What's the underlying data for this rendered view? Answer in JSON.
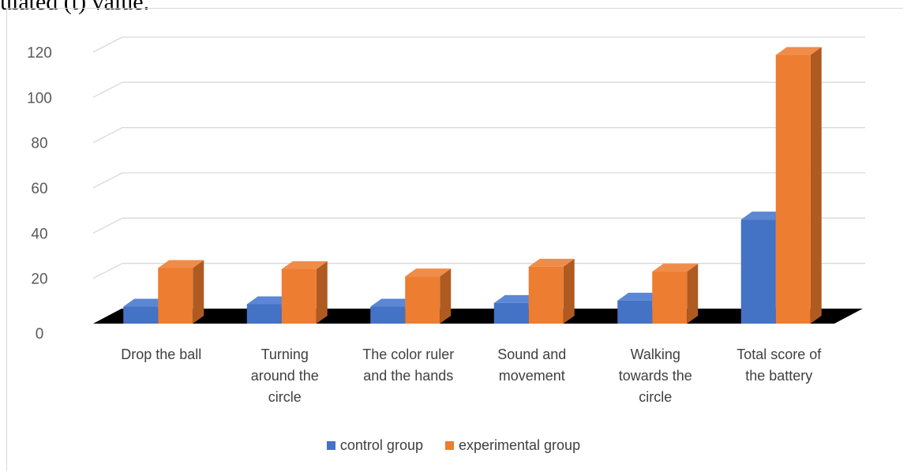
{
  "page": {
    "top_text": "ulated (t) value."
  },
  "chart_data": {
    "type": "bar",
    "title": "",
    "xlabel": "",
    "ylabel": "",
    "ylim": [
      0,
      120
    ],
    "yticks": [
      0,
      20,
      40,
      60,
      80,
      100,
      120
    ],
    "grid": true,
    "legend_position": "bottom",
    "categories": [
      [
        "Drop the ball"
      ],
      [
        "Turning",
        "around the",
        "circle"
      ],
      [
        "The color ruler",
        "and the hands"
      ],
      [
        "Sound and",
        "movement"
      ],
      [
        "Walking",
        "towards the",
        "circle"
      ],
      [
        "Total score of",
        "the battery"
      ]
    ],
    "series": [
      {
        "name": "control group",
        "color": "#4472c4",
        "values": [
          7,
          8,
          7,
          8.5,
          9.5,
          43
        ]
      },
      {
        "name": "experimental group",
        "color": "#ed7d31",
        "values": [
          23,
          22.5,
          19.5,
          23.5,
          21.5,
          111
        ]
      }
    ]
  }
}
